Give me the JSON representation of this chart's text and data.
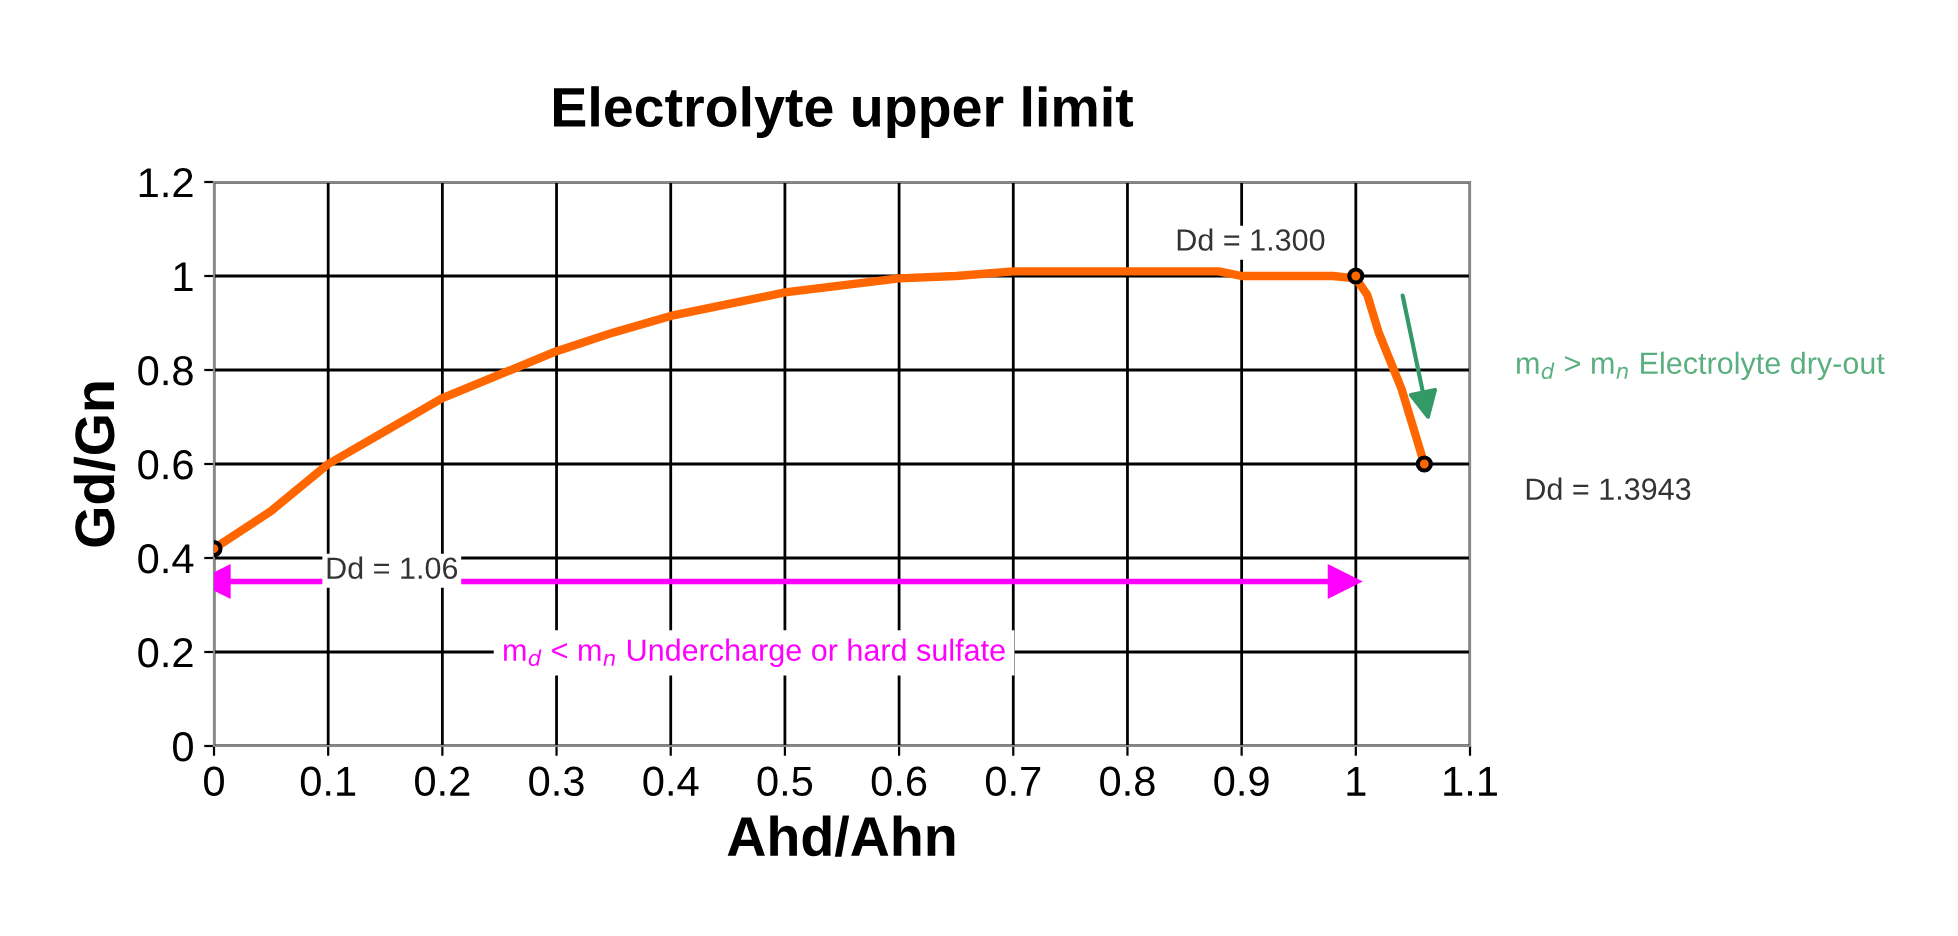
{
  "chart_data": {
    "type": "line",
    "title": "Electrolyte upper limit",
    "xlabel": "Ahd/Ahn",
    "ylabel": "Gd/Gn",
    "xlim": [
      0,
      1.1
    ],
    "xticks": [
      0,
      0.1,
      0.2,
      0.3,
      0.4,
      0.5,
      0.6,
      0.7,
      0.8,
      0.9,
      1,
      1.1
    ],
    "ylim": [
      0,
      1.2
    ],
    "yticks": [
      0,
      0.2,
      0.4,
      0.6,
      0.8,
      1,
      1.2
    ],
    "grid": true,
    "legend": false,
    "series": [
      {
        "color": "#ff6600",
        "marker": "none",
        "line_style": "solid",
        "x": [
          0,
          0.05,
          0.1,
          0.15,
          0.2,
          0.25,
          0.3,
          0.35,
          0.4,
          0.45,
          0.5,
          0.55,
          0.6,
          0.65,
          0.7,
          0.8,
          0.88,
          0.9,
          0.98,
          1.0,
          1.01,
          1.02,
          1.04,
          1.05,
          1.06
        ],
        "values": [
          0.42,
          0.5,
          0.6,
          0.67,
          0.74,
          0.79,
          0.84,
          0.88,
          0.915,
          0.94,
          0.965,
          0.98,
          0.995,
          1.0,
          1.01,
          1.01,
          1.01,
          1.0,
          1.0,
          0.995,
          0.96,
          0.88,
          0.76,
          0.68,
          0.6
        ]
      },
      {
        "type": "scatter",
        "color": "#ff6600",
        "marker": "circle",
        "x": [
          0,
          1.0,
          1.06
        ],
        "values": [
          0.42,
          1.0,
          0.6
        ]
      },
      {
        "type": "line",
        "color": "#ff00ff",
        "marker": "triangle",
        "x": [
          0,
          0.99
        ],
        "values": [
          0.35,
          0.35
        ]
      }
    ],
    "annotations": [
      "Dd = 1.06",
      "Dd = 1.300",
      "Dd = 1.3943",
      "m$_{d}$ < m$_{n}$ Undercharge or hard sulfate",
      "m$_{d}$ > m$_{n}$ Electrolyte dry-out"
    ]
  }
}
